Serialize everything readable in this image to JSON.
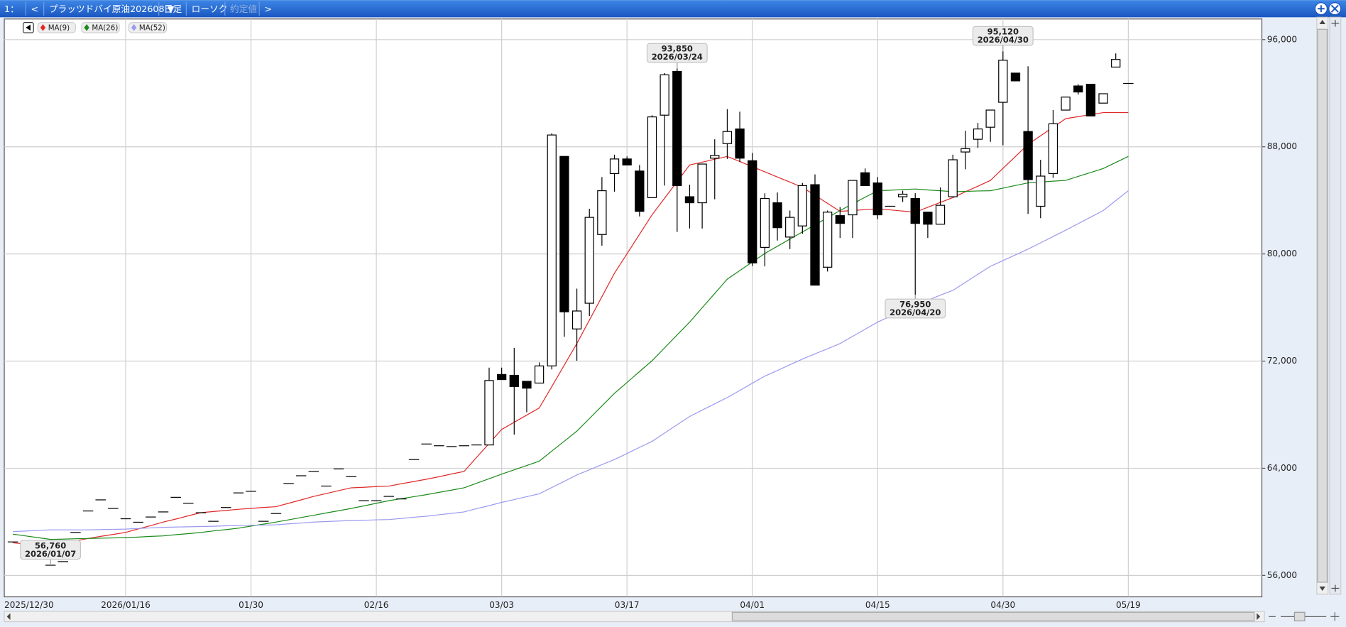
{
  "toolbar": {
    "items": [
      {
        "text": "1："
      },
      {
        "text": "<"
      },
      {
        "text": "プラッツドバイ原油202608 ▼"
      },
      {
        "text": "日足"
      },
      {
        "text": "ローソク"
      },
      {
        "text": "約定値",
        "disabled": true
      },
      {
        "text": ">"
      }
    ]
  },
  "chart_data": {
    "type": "candlestick",
    "categories": [
      "2025/12/30",
      null,
      null,
      null,
      null,
      null,
      null,
      null,
      null,
      "2026/01/16",
      null,
      null,
      null,
      null,
      null,
      null,
      null,
      null,
      null,
      "01/30",
      null,
      null,
      null,
      null,
      null,
      null,
      null,
      null,
      null,
      "02/16",
      null,
      null,
      null,
      null,
      null,
      null,
      null,
      null,
      null,
      "03/03",
      null,
      null,
      null,
      null,
      null,
      null,
      null,
      null,
      null,
      "03/17",
      null,
      null,
      null,
      null,
      null,
      null,
      null,
      null,
      null,
      "04/01",
      null,
      null,
      null,
      null,
      null,
      null,
      null,
      null,
      null,
      "04/15",
      null,
      null,
      null,
      null,
      null,
      null,
      null,
      null,
      null,
      "04/30",
      null,
      null,
      null,
      null,
      null,
      null,
      null,
      null,
      null,
      "05/19"
    ],
    "open": [
      58500,
      57670,
      58180,
      56760,
      57030,
      59210,
      60810,
      61640,
      61000,
      60230,
      59970,
      60360,
      60740,
      61830,
      61390,
      60680,
      60040,
      61070,
      62160,
      62280,
      60040,
      60620,
      62860,
      63440,
      63760,
      62670,
      63950,
      63370,
      61580,
      61580,
      61900,
      61710,
      64650,
      65810,
      65680,
      65620,
      65680,
      65740,
      65740,
      71000,
      70940,
      70490,
      70360,
      71640,
      87280,
      74400,
      76320,
      81450,
      86000,
      87090,
      86190,
      84200,
      90360,
      93630,
      84270,
      83820,
      87150,
      88240,
      89330,
      86960,
      80490,
      83820,
      81260,
      82090,
      85170,
      79010,
      82860,
      82920,
      86060,
      85300,
      83560,
      84270,
      84140,
      83120,
      82220,
      84270,
      87610,
      88560,
      89460,
      91320,
      93500,
      89140,
      83560,
      86000,
      90740,
      92540,
      92670,
      91260,
      93950,
      92730
    ],
    "high": [
      58500,
      57670,
      58180,
      56760,
      57030,
      59210,
      60810,
      61640,
      61000,
      60230,
      59970,
      60360,
      60740,
      61830,
      61390,
      60680,
      60040,
      61070,
      62160,
      62280,
      60040,
      60620,
      62860,
      63440,
      63760,
      62670,
      63950,
      63370,
      61580,
      61580,
      61900,
      61710,
      64650,
      65810,
      65680,
      65620,
      65680,
      65740,
      71510,
      71510,
      72990,
      70490,
      71900,
      89010,
      87280,
      77410,
      83370,
      85740,
      87410,
      87280,
      86640,
      90360,
      93500,
      93850,
      85170,
      86710,
      88560,
      90810,
      90620,
      87540,
      84530,
      84590,
      83240,
      85300,
      85940,
      83240,
      83500,
      85490,
      86380,
      85740,
      83560,
      84720,
      84530,
      83120,
      84970,
      87410,
      89200,
      89780,
      90740,
      95120,
      93500,
      94010,
      87030,
      90740,
      91710,
      92670,
      92670,
      91960,
      94970,
      92730
    ],
    "low": [
      58500,
      57670,
      58180,
      56760,
      57030,
      59210,
      60810,
      61640,
      61000,
      60230,
      59970,
      60360,
      60740,
      61830,
      61390,
      60680,
      60040,
      61070,
      62160,
      62280,
      60040,
      60620,
      62860,
      63440,
      63760,
      62670,
      63950,
      63370,
      61580,
      61580,
      61900,
      61710,
      64650,
      65810,
      65680,
      65620,
      65680,
      65740,
      65740,
      70620,
      66510,
      68180,
      70360,
      71380,
      73820,
      72030,
      75360,
      80620,
      84650,
      86640,
      82800,
      84200,
      85100,
      81640,
      81900,
      81900,
      84080,
      87090,
      86860,
      79100,
      79070,
      81000,
      80360,
      81510,
      77670,
      78690,
      81190,
      81190,
      85100,
      82600,
      83560,
      83880,
      76950,
      81190,
      82220,
      84270,
      86320,
      87920,
      88370,
      88110,
      92920,
      82990,
      82670,
      85680,
      90740,
      91900,
      90300,
      91260,
      93950,
      92730
    ],
    "close": [
      58500,
      57670,
      58180,
      56760,
      57030,
      59210,
      60810,
      61640,
      61000,
      60230,
      59970,
      60360,
      60740,
      61830,
      61390,
      60680,
      60040,
      61070,
      62160,
      62280,
      60040,
      60620,
      62860,
      63440,
      63760,
      62670,
      63950,
      63370,
      61580,
      61580,
      61900,
      61710,
      64650,
      65810,
      65680,
      65620,
      65680,
      65740,
      70550,
      70620,
      70100,
      69980,
      71640,
      88880,
      75680,
      75740,
      82730,
      84720,
      87090,
      86640,
      83180,
      90230,
      93370,
      85100,
      83820,
      86710,
      87350,
      89140,
      87150,
      79330,
      84140,
      81960,
      82730,
      85100,
      77670,
      83120,
      82280,
      85490,
      85100,
      82920,
      83560,
      84460,
      82280,
      82220,
      83630,
      87030,
      87860,
      89330,
      90740,
      94460,
      92920,
      85550,
      85810,
      89720,
      91710,
      92090,
      90300,
      91960,
      94520,
      92730
    ],
    "up_color": "#ffffff",
    "down_color": "#000000",
    "series": [
      {
        "name": "MA(9)",
        "color": "#e02828",
        "values": [
          58440,
          58350,
          58270,
          58180,
          58370,
          58570,
          58760,
          58910,
          59060,
          59210,
          59470,
          59720,
          59980,
          60210,
          60450,
          60680,
          60770,
          60850,
          60940,
          61000,
          61070,
          61130,
          61390,
          61640,
          61900,
          62110,
          62330,
          62540,
          62580,
          62630,
          62670,
          62840,
          63010,
          63180,
          63370,
          63570,
          63760,
          64810,
          65850,
          66900,
          67430,
          67970,
          68500,
          70100,
          71710,
          73310,
          75060,
          76810,
          78560,
          80010,
          81470,
          82920,
          84160,
          85400,
          86640,
          86850,
          87070,
          87280,
          86900,
          86510,
          86130,
          85740,
          85360,
          84970,
          84380,
          83780,
          83180,
          83240,
          83310,
          83370,
          83290,
          83200,
          83120,
          83480,
          83850,
          84210,
          84640,
          85060,
          85490,
          86390,
          87280,
          88180,
          88820,
          89460,
          90100,
          90250,
          90400,
          90550,
          90550,
          90550
        ]
      },
      {
        "name": "MA(26)",
        "color": "#1a8a1a",
        "values": [
          59080,
          58950,
          58820,
          58690,
          58710,
          58740,
          58760,
          58780,
          58800,
          58820,
          58860,
          58910,
          58950,
          59040,
          59120,
          59210,
          59320,
          59420,
          59530,
          59680,
          59830,
          59980,
          60150,
          60320,
          60490,
          60660,
          60830,
          61000,
          61190,
          61390,
          61580,
          61730,
          61880,
          62030,
          62200,
          62370,
          62540,
          62880,
          63220,
          63560,
          63880,
          64210,
          64530,
          65280,
          66020,
          66770,
          67710,
          68650,
          69590,
          70400,
          71220,
          72030,
          72990,
          73950,
          74910,
          75980,
          77050,
          78120,
          78760,
          79400,
          80040,
          80570,
          81110,
          81640,
          82170,
          82710,
          83240,
          83730,
          84230,
          84720,
          84760,
          84810,
          84850,
          84780,
          84720,
          84650,
          84670,
          84700,
          84720,
          84910,
          85110,
          85300,
          85360,
          85430,
          85490,
          85790,
          86080,
          86380,
          86830,
          87280
        ]
      },
      {
        "name": "MA(52)",
        "color": "#9a9af0",
        "values": [
          59270,
          59310,
          59360,
          59400,
          59400,
          59400,
          59400,
          59420,
          59440,
          59460,
          59500,
          59550,
          59590,
          59610,
          59630,
          59650,
          59670,
          59700,
          59720,
          59740,
          59760,
          59780,
          59850,
          59910,
          59980,
          60020,
          60060,
          60100,
          60120,
          60150,
          60170,
          60250,
          60340,
          60420,
          60530,
          60630,
          60740,
          60980,
          61210,
          61450,
          61660,
          61880,
          62090,
          62560,
          63030,
          63500,
          63880,
          64270,
          64650,
          65100,
          65560,
          66010,
          66630,
          67250,
          67870,
          68340,
          68810,
          69280,
          69810,
          70350,
          70880,
          71300,
          71730,
          72150,
          72540,
          72920,
          73310,
          73840,
          74380,
          74910,
          75340,
          75760,
          76190,
          76550,
          76920,
          77280,
          77880,
          78480,
          79080,
          79510,
          79930,
          80360,
          80830,
          81300,
          81770,
          82260,
          82750,
          83240,
          83980,
          84720
        ]
      }
    ],
    "ylim": [
      54400,
      97540
    ],
    "yticks": [
      {
        "value": 56000,
        "label": "56,000"
      },
      {
        "value": 64000,
        "label": "64,000"
      },
      {
        "value": 72000,
        "label": "72,000"
      },
      {
        "value": 80000,
        "label": "80,000"
      },
      {
        "value": 88000,
        "label": "88,000"
      },
      {
        "value": 96000,
        "label": "96,000"
      }
    ],
    "grid": true,
    "annotations": [
      {
        "value": 93850,
        "label": "93,850",
        "date": "2026/03/24"
      },
      {
        "value": 95120,
        "label": "95,120",
        "date": "2026/04/30"
      },
      {
        "value": 76950,
        "label": "76,950",
        "date": "2026/04/20"
      },
      {
        "value": 56760,
        "label": "56,760",
        "date": "2026/01/07"
      }
    ]
  }
}
